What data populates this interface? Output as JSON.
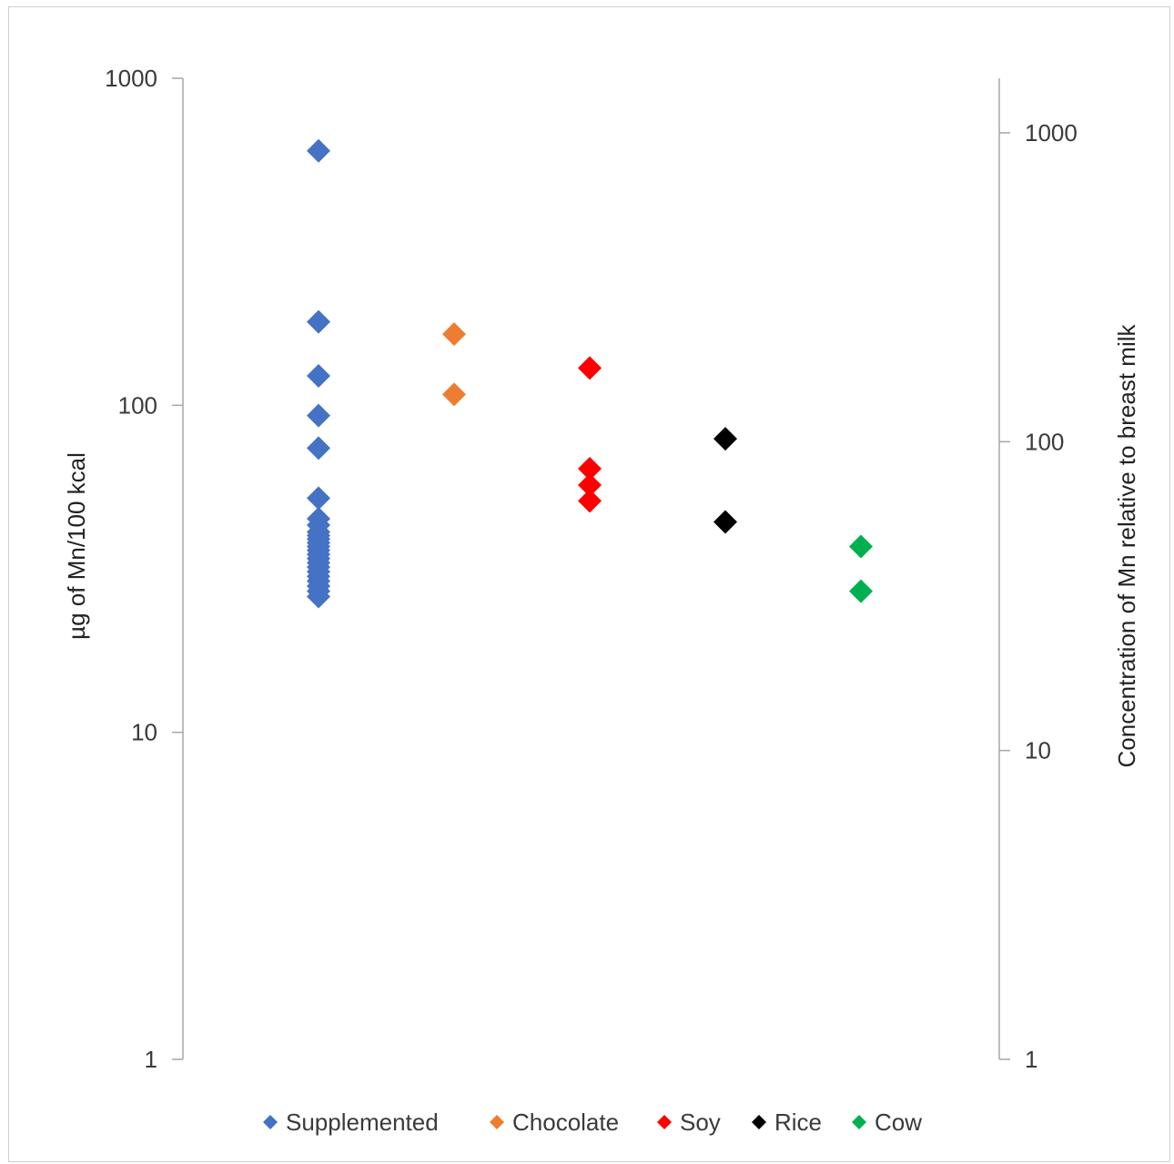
{
  "chart_data": {
    "type": "scatter",
    "title": "",
    "xlabel": "",
    "ylabel": "µg of Mn/100 kcal",
    "y2label": "Concentration of Mn relative to breast milk",
    "y_scale": "log",
    "ylim": [
      1,
      1000
    ],
    "y_ticks": [
      "1",
      "10",
      "100",
      "1000"
    ],
    "y2_scale": "log",
    "y2lim": [
      1,
      1000
    ],
    "y2_ticks": [
      "1",
      "10",
      "100",
      "1000"
    ],
    "grid": false,
    "legend_position": "bottom",
    "series": [
      {
        "name": "Supplemented",
        "color": "#4472C4",
        "x": 1,
        "values": [
          600,
          180,
          123,
          93,
          74,
          52,
          45,
          43,
          41,
          40,
          39,
          38,
          37,
          36,
          35,
          34,
          33,
          32,
          31,
          30,
          29,
          28,
          27,
          26
        ]
      },
      {
        "name": "Chocolate",
        "color": "#ED7D31",
        "x": 2,
        "values": [
          165,
          108
        ]
      },
      {
        "name": "Soy",
        "color": "#FF0000",
        "x": 3,
        "values": [
          130,
          64,
          57,
          51
        ]
      },
      {
        "name": "Rice",
        "color": "#000000",
        "x": 4,
        "values": [
          79,
          44
        ]
      },
      {
        "name": "Cow",
        "color": "#00B050",
        "x": 5,
        "values": [
          37,
          27
        ]
      }
    ]
  }
}
